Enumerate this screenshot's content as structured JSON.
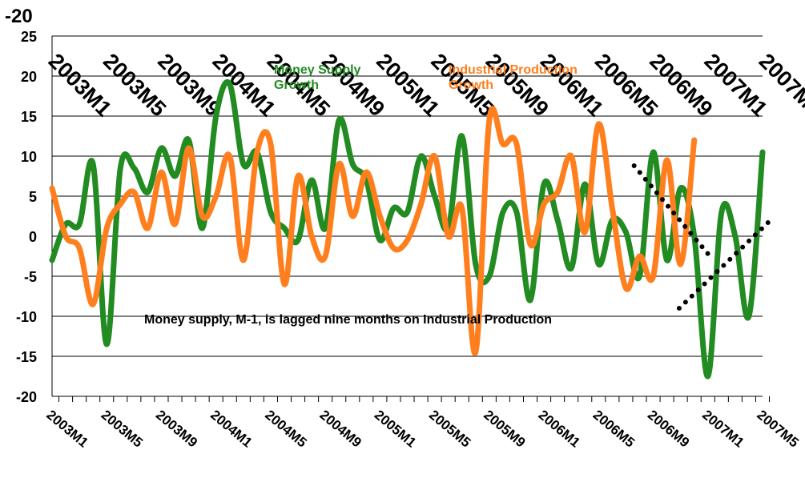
{
  "chart_data": {
    "type": "line",
    "top_label": "-20",
    "categories": [
      "2003M1",
      null,
      null,
      null,
      "2003M5",
      null,
      null,
      null,
      "2003M9",
      null,
      null,
      null,
      "2004M1",
      null,
      null,
      null,
      "2004M5",
      null,
      null,
      null,
      "2004M9",
      null,
      null,
      null,
      "2005M1",
      null,
      null,
      null,
      "2005M5",
      null,
      null,
      null,
      "2005M9",
      null,
      null,
      null,
      "2006M1",
      null,
      null,
      null,
      "2006M5",
      null,
      null,
      null,
      "2006M9",
      null,
      null,
      null,
      "2007M1",
      null,
      null,
      null,
      "2007M5"
    ],
    "series": [
      {
        "name": "Money Supply Growth",
        "color": "#228b22",
        "values": [
          -3,
          1.5,
          1.5,
          9,
          -13.5,
          8.5,
          8.5,
          5.5,
          11,
          7.5,
          12,
          1,
          15,
          19,
          9,
          10.5,
          3,
          1,
          -0.5,
          7,
          1,
          14.5,
          9,
          7,
          -0.5,
          3.5,
          3,
          10,
          5,
          1,
          12.5,
          -3.5,
          -5,
          3,
          3,
          -8,
          6.5,
          2,
          -4,
          6.5,
          -3.5,
          2,
          0.5,
          -5,
          10.5,
          -3,
          6,
          0,
          -17.5,
          3,
          0,
          -10,
          10.5
        ]
      },
      {
        "name": "Industrial Production Growth",
        "color": "#ff7f1e",
        "values": [
          6,
          0,
          -1.5,
          -8.5,
          1,
          4,
          5.5,
          1,
          8,
          1.5,
          11,
          2.5,
          5,
          10,
          -3,
          10.5,
          11.5,
          -6,
          7.5,
          0,
          -2.5,
          9,
          2.5,
          8,
          2.5,
          -1.5,
          -0.5,
          4,
          10,
          0,
          3.5,
          -14.5,
          14.5,
          11.5,
          11.5,
          -1,
          4,
          5.5,
          10,
          0.5,
          14,
          3.5,
          -6.5,
          -2.5,
          -5,
          9.5,
          -3.5,
          12,
          null,
          null,
          null,
          null,
          null
        ]
      }
    ],
    "trend_lines": [
      {
        "color": "#000000",
        "x": [
          42.6,
          48.4
        ],
        "values": [
          8.8,
          -3
        ]
      },
      {
        "color": "#000000",
        "x": [
          45.9,
          52.4
        ],
        "values": [
          -9,
          1.7
        ]
      }
    ],
    "annotations": [
      "Money supply, M-1, is lagged nine months on Industrial Production"
    ],
    "ylim": [
      -20,
      25
    ],
    "yticks": [
      -20,
      -15,
      -10,
      -5,
      0,
      5,
      10,
      15,
      20,
      25
    ],
    "grid": true
  }
}
